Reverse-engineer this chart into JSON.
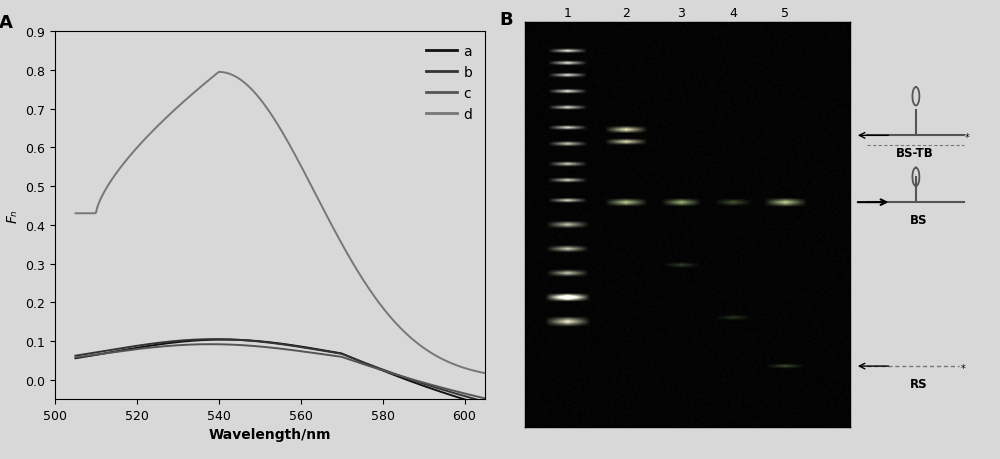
{
  "panel_A_label": "A",
  "panel_B_label": "B",
  "xlabel": "Wavelength/nm",
  "ylabel": "Fₙ",
  "xlim": [
    500,
    605
  ],
  "ylim": [
    -0.05,
    0.9
  ],
  "yticks": [
    0.0,
    0.1,
    0.2,
    0.3,
    0.4,
    0.5,
    0.6,
    0.7,
    0.8,
    0.9
  ],
  "xticks": [
    500,
    520,
    540,
    560,
    580,
    600
  ],
  "legend_labels": [
    "a",
    "b",
    "c",
    "d"
  ],
  "lane_labels": [
    "1",
    "2",
    "3",
    "4",
    "5"
  ],
  "annotations": [
    "BS-TB",
    "BS",
    "RS"
  ],
  "background_color": "#d8d8d8",
  "plot_bg_color": "#e0e0e0",
  "ladder_bands_y": [
    0.07,
    0.1,
    0.13,
    0.17,
    0.21,
    0.26,
    0.3,
    0.35,
    0.39,
    0.44,
    0.5,
    0.56,
    0.62,
    0.68
  ],
  "gel_noise_level": 0.06
}
